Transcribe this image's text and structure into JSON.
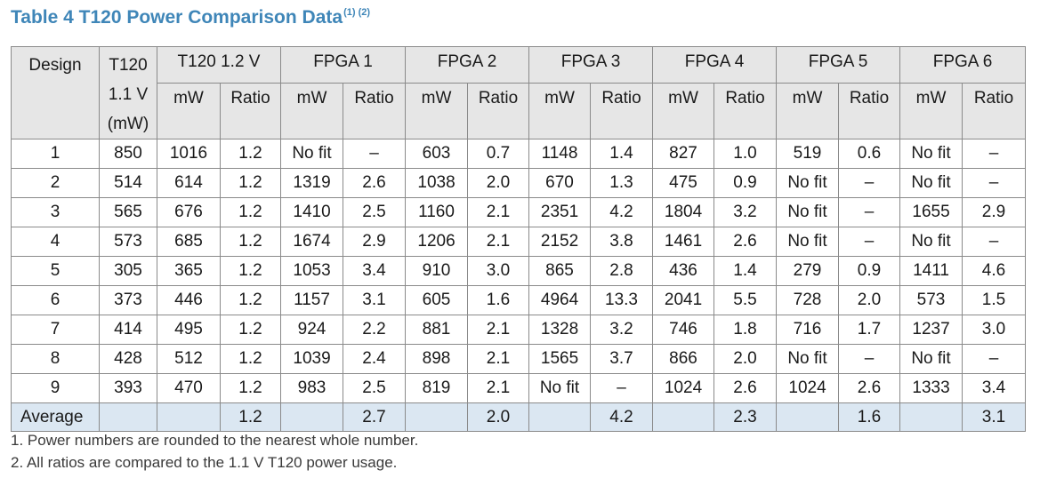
{
  "title": {
    "text": "Table 4  T120 Power Comparison Data",
    "superscript": "(1) (2)"
  },
  "colors": {
    "title": "#3f86b8",
    "header_bg": "#e6e6e6",
    "average_bg": "#dbe7f2",
    "border": "#8a8a8a"
  },
  "table": {
    "headers": {
      "design": "Design",
      "t120_11": "T120\n1.1 V\n(mW)",
      "groups": [
        "T120 1.2 V",
        "FPGA 1",
        "FPGA 2",
        "FPGA 3",
        "FPGA 4",
        "FPGA 5",
        "FPGA 6"
      ],
      "mw": "mW",
      "ratio": "Ratio"
    },
    "rows": [
      [
        "1",
        "850",
        "1016",
        "1.2",
        "No fit",
        "–",
        "603",
        "0.7",
        "1148",
        "1.4",
        "827",
        "1.0",
        "519",
        "0.6",
        "No fit",
        "–"
      ],
      [
        "2",
        "514",
        "614",
        "1.2",
        "1319",
        "2.6",
        "1038",
        "2.0",
        "670",
        "1.3",
        "475",
        "0.9",
        "No fit",
        "–",
        "No fit",
        "–"
      ],
      [
        "3",
        "565",
        "676",
        "1.2",
        "1410",
        "2.5",
        "1160",
        "2.1",
        "2351",
        "4.2",
        "1804",
        "3.2",
        "No fit",
        "–",
        "1655",
        "2.9"
      ],
      [
        "4",
        "573",
        "685",
        "1.2",
        "1674",
        "2.9",
        "1206",
        "2.1",
        "2152",
        "3.8",
        "1461",
        "2.6",
        "No fit",
        "–",
        "No fit",
        "–"
      ],
      [
        "5",
        "305",
        "365",
        "1.2",
        "1053",
        "3.4",
        "910",
        "3.0",
        "865",
        "2.8",
        "436",
        "1.4",
        "279",
        "0.9",
        "1411",
        "4.6"
      ],
      [
        "6",
        "373",
        "446",
        "1.2",
        "1157",
        "3.1",
        "605",
        "1.6",
        "4964",
        "13.3",
        "2041",
        "5.5",
        "728",
        "2.0",
        "573",
        "1.5"
      ],
      [
        "7",
        "414",
        "495",
        "1.2",
        "924",
        "2.2",
        "881",
        "2.1",
        "1328",
        "3.2",
        "746",
        "1.8",
        "716",
        "1.7",
        "1237",
        "3.0"
      ],
      [
        "8",
        "428",
        "512",
        "1.2",
        "1039",
        "2.4",
        "898",
        "2.1",
        "1565",
        "3.7",
        "866",
        "2.0",
        "No fit",
        "–",
        "No fit",
        "–"
      ],
      [
        "9",
        "393",
        "470",
        "1.2",
        "983",
        "2.5",
        "819",
        "2.1",
        "No fit",
        "–",
        "1024",
        "2.6",
        "1024",
        "2.6",
        "1333",
        "3.4"
      ]
    ],
    "average": [
      "Average",
      "",
      "",
      "1.2",
      "",
      "2.7",
      "",
      "2.0",
      "",
      "4.2",
      "",
      "2.3",
      "",
      "1.6",
      "",
      "3.1"
    ]
  },
  "notes": [
    "1. Power numbers are rounded to the nearest whole number.",
    "2. All ratios are compared to the 1.1 V T120 power usage."
  ]
}
